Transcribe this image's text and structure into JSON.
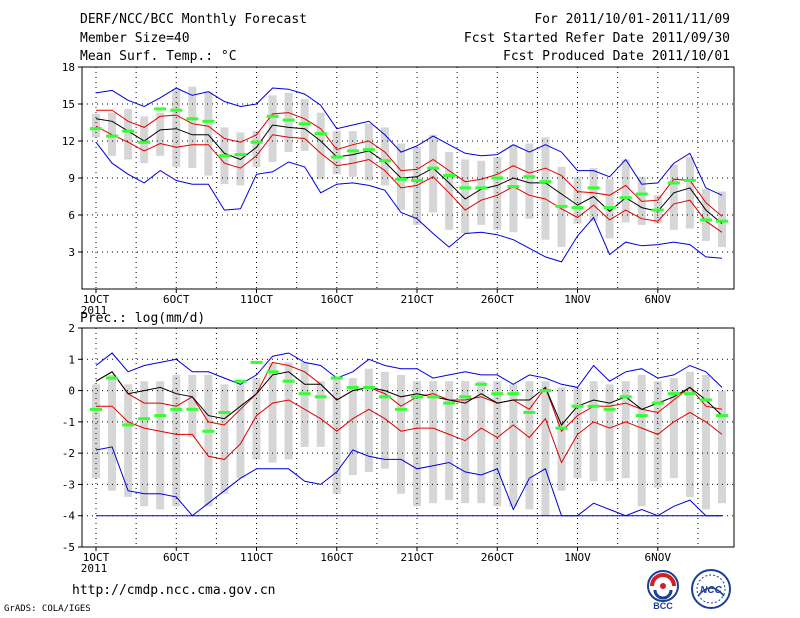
{
  "header": {
    "title": "DERF/NCC/BCC Monthly Forecast",
    "member_size": "Member Size=40",
    "variable": "Mean Surf. Temp.: °C",
    "period": "For 2011/10/01-2011/11/09",
    "fcst_started": "Fcst Started Refer Date 2011/09/30",
    "fcst_produced": "Fcst Produced Date 2011/10/01"
  },
  "footer": {
    "url": "http://cmdp.ncc.cma.gov.cn",
    "credit": "GrADS: COLA/IGES",
    "logo_left_text": "BCC",
    "logo_right_text": "NCC"
  },
  "colors": {
    "box": "#d6d6d6",
    "mean": "#000000",
    "inner": "#e00000",
    "outer": "#0000e0",
    "median": "#33ff33"
  },
  "chart_data": [
    {
      "type": "line",
      "title": "Mean Surf. Temp.: °C",
      "x_ticks": [
        "1OCT",
        "6OCT",
        "11OCT",
        "16OCT",
        "21OCT",
        "26OCT",
        "1NOV",
        "6NOV"
      ],
      "x_year": "2011",
      "y_ticks": [
        "3",
        "6",
        "9",
        "12",
        "15",
        "18"
      ],
      "ylim": [
        0,
        18
      ],
      "days": 40,
      "series": [
        {
          "name": "max",
          "values": [
            15.9,
            16.1,
            15.3,
            14.8,
            15.5,
            16.3,
            15.7,
            16,
            15.2,
            14.8,
            15,
            16.3,
            16.2,
            15.8,
            14.9,
            13,
            13.3,
            13.6,
            12.5,
            11.1,
            11.6,
            12.4,
            11.7,
            11,
            10.8,
            10.9,
            11.7,
            11.1,
            11.7,
            11.1,
            9.6,
            9.6,
            9.1,
            10.5,
            8.5,
            8.6,
            10.2,
            11,
            8.2,
            7.6
          ]
        },
        {
          "name": "upper",
          "values": [
            14.5,
            14.5,
            13.6,
            13.1,
            14,
            14.1,
            13.4,
            13.2,
            12.2,
            11.9,
            12.5,
            14.2,
            14.3,
            13.8,
            13,
            11.3,
            11.7,
            12,
            11.1,
            9.6,
            9.7,
            10.5,
            9.6,
            8.7,
            8.9,
            9.3,
            10,
            9.4,
            9.8,
            9.2,
            7.9,
            7.8,
            7.6,
            8.4,
            7.1,
            7.2,
            8.9,
            8.8,
            7,
            5.9
          ]
        },
        {
          "name": "mean",
          "values": [
            13.8,
            13.6,
            12.8,
            12,
            12.9,
            13,
            12.5,
            12.5,
            11,
            10.5,
            11.5,
            13.3,
            13.1,
            13,
            12,
            10.7,
            10.9,
            11.2,
            10.3,
            9,
            9.1,
            9.8,
            8.6,
            7.3,
            8.1,
            8.4,
            9,
            8.6,
            8.6,
            7.7,
            6.8,
            7.5,
            6.3,
            7.4,
            6.6,
            6.3,
            7.8,
            8.2,
            6.4,
            5.3
          ]
        },
        {
          "name": "lower",
          "values": [
            13.2,
            12.5,
            11.9,
            11.2,
            11.8,
            11.5,
            11.7,
            11.7,
            10.2,
            9.8,
            10.8,
            12.5,
            12.3,
            12.2,
            11,
            10,
            10.2,
            10.5,
            9.6,
            8.2,
            8.4,
            9.1,
            7.8,
            6.4,
            7.2,
            7.6,
            8.3,
            7.6,
            7.3,
            6.5,
            5.8,
            6.8,
            5.6,
            6.4,
            5.7,
            5.5,
            6.9,
            7.2,
            5.5,
            4.6
          ]
        },
        {
          "name": "min",
          "values": [
            11.9,
            10.2,
            9.3,
            8.6,
            9.6,
            8.8,
            8.5,
            8.5,
            6.4,
            6.5,
            9.3,
            9.5,
            10.3,
            9.9,
            7.8,
            8.5,
            8.6,
            8.4,
            8,
            6.2,
            5.7,
            4.5,
            3.4,
            4.5,
            4.6,
            4.4,
            4,
            3.3,
            2.6,
            2.2,
            4.3,
            5.8,
            2.8,
            3.8,
            3.5,
            3.6,
            3.8,
            3.6,
            2.6,
            2.5
          ]
        },
        {
          "name": "median",
          "values": [
            13,
            12.4,
            12.8,
            11.9,
            14.6,
            14.5,
            13.8,
            13.6,
            10.8,
            10.9,
            11.9,
            14,
            13.7,
            13.4,
            12.6,
            10.7,
            11.2,
            11.3,
            10.4,
            8.9,
            8.8,
            9.8,
            9.2,
            8.2,
            8.2,
            9,
            8.3,
            9.1,
            8.7,
            6.7,
            6.6,
            8.2,
            6.6,
            7.4,
            7.7,
            6.4,
            8.6,
            8.8,
            5.6,
            5.5
          ]
        },
        {
          "name": "box_high",
          "values": [
            14.2,
            14.3,
            14.6,
            14,
            14.3,
            16.2,
            16.4,
            16,
            13.1,
            12.7,
            12.8,
            15.7,
            15.9,
            15.4,
            14.3,
            12.8,
            12.8,
            13.4,
            13.1,
            11.8,
            11.5,
            12.5,
            11.1,
            10.5,
            10.4,
            10.7,
            11.7,
            11.8,
            12.3,
            9.9,
            9.1,
            9.8,
            8.9,
            10.5,
            9.1,
            7.6,
            10.1,
            10.7,
            8.1,
            7.9
          ]
        },
        {
          "name": "box_low",
          "values": [
            12.3,
            10.8,
            10.5,
            10.2,
            10.8,
            9.9,
            9.8,
            9.2,
            8.5,
            8.4,
            9.9,
            10.3,
            11.1,
            11.2,
            8.9,
            9.3,
            9.1,
            8.8,
            8.4,
            6.4,
            5.2,
            6.2,
            4.8,
            4.5,
            5.2,
            4.8,
            4.6,
            5.7,
            4,
            3.4,
            5.3,
            5.5,
            4.1,
            5.4,
            5.2,
            5.3,
            4.8,
            4.9,
            3.9,
            3.4
          ]
        }
      ]
    },
    {
      "type": "line",
      "title": "Prec.: log(mm/d)",
      "x_ticks": [
        "1OCT",
        "6OCT",
        "11OCT",
        "16OCT",
        "21OCT",
        "26OCT",
        "1NOV",
        "6NOV"
      ],
      "x_year": "2011",
      "y_ticks": [
        "-5",
        "-4",
        "-3",
        "-2",
        "-1",
        "0",
        "1",
        "2"
      ],
      "ylim": [
        -5,
        2
      ],
      "days": 40,
      "series": [
        {
          "name": "max",
          "values": [
            0.8,
            1.2,
            0.6,
            0.8,
            0.9,
            1,
            0.6,
            0.6,
            0.4,
            0.2,
            0.5,
            1.1,
            1.2,
            0.9,
            0.8,
            0.4,
            0.6,
            1,
            0.8,
            0.7,
            0.7,
            0.4,
            0.5,
            0.6,
            0.5,
            0.5,
            0.2,
            0.5,
            0.4,
            0.2,
            0.1,
            0.8,
            0.3,
            0.6,
            0.7,
            0.4,
            0.5,
            0.8,
            0.6,
            0.1
          ]
        },
        {
          "name": "upper",
          "values": [
            0.3,
            0.6,
            -0.1,
            -0.4,
            -0.4,
            -0.5,
            -0.2,
            -1,
            -1.1,
            -0.6,
            -0.1,
            0.9,
            0.8,
            0.6,
            0.2,
            -0.3,
            0,
            0.1,
            -0.1,
            -0.5,
            -0.2,
            -0.1,
            -0.3,
            -0.3,
            -0.2,
            -0.4,
            -0.3,
            -0.6,
            0.1,
            -1.3,
            -0.8,
            -0.5,
            -0.5,
            -0.4,
            -0.6,
            -0.7,
            -0.3,
            0.1,
            -0.5,
            -0.6
          ]
        },
        {
          "name": "mean",
          "values": [
            0.3,
            0.6,
            -0.1,
            0,
            0.1,
            -0.1,
            -0.2,
            -0.8,
            -0.9,
            -0.5,
            -0.1,
            0.5,
            0.6,
            0.2,
            0.2,
            -0.3,
            0,
            0.1,
            0,
            -0.2,
            -0.1,
            -0.2,
            -0.3,
            -0.4,
            -0.1,
            -0.4,
            -0.3,
            -0.3,
            0.1,
            -1.1,
            -0.5,
            -0.3,
            -0.4,
            -0.2,
            -0.6,
            -0.4,
            -0.2,
            0.1,
            -0.3,
            -0.8
          ]
        },
        {
          "name": "lower",
          "values": [
            -0.5,
            -0.5,
            -1,
            -1.2,
            -1.3,
            -1.4,
            -1.4,
            -2.1,
            -2.2,
            -1.7,
            -0.8,
            -0.4,
            -0.3,
            -0.6,
            -0.9,
            -1.3,
            -0.9,
            -0.6,
            -0.9,
            -1.3,
            -1.2,
            -1.2,
            -1.4,
            -1.6,
            -1.2,
            -1.5,
            -1.1,
            -1.5,
            -0.9,
            -2.3,
            -1.4,
            -1,
            -1.2,
            -1,
            -1.2,
            -1.4,
            -1,
            -0.7,
            -1,
            -1.4
          ]
        },
        {
          "name": "min",
          "values": [
            -1.9,
            -1.8,
            -3.2,
            -3.3,
            -3.3,
            -3.4,
            -4,
            -3.6,
            -3.2,
            -2.8,
            -2.5,
            -2.5,
            -2.5,
            -2.9,
            -3,
            -2.6,
            -1.9,
            -2.1,
            -2.2,
            -2.2,
            -2.5,
            -2.4,
            -2.3,
            -2.6,
            -2.7,
            -2.5,
            -3.8,
            -2.8,
            -2.5,
            -4,
            -4,
            -3.6,
            -3.8,
            -4,
            -3.8,
            -4,
            -3.7,
            -3.5,
            -4,
            -4
          ]
        },
        {
          "name": "min_floor",
          "values": [
            -4,
            -4,
            -4,
            -4,
            -4,
            -4,
            -4,
            -4,
            -4,
            -4,
            -4,
            -4,
            -4,
            -4,
            -4,
            -4,
            -4,
            -4,
            -4,
            -4,
            -4,
            -4,
            -4,
            -4,
            -4,
            -4,
            -4,
            -4,
            -4,
            -4,
            -4,
            -4,
            -4,
            -4,
            -4,
            -4,
            -4,
            -4,
            -4,
            -4
          ]
        },
        {
          "name": "median",
          "values": [
            -0.6,
            0.4,
            -1.1,
            -0.9,
            -0.8,
            -0.6,
            -0.6,
            -1.3,
            -0.7,
            0.3,
            0.9,
            0.6,
            0.3,
            -0.1,
            -0.2,
            0.4,
            0.1,
            0.1,
            -0.2,
            -0.6,
            -0.2,
            -0.2,
            -0.4,
            -0.2,
            0.2,
            -0.1,
            -0.1,
            -0.7,
            0,
            -1.2,
            -0.5,
            -0.5,
            -0.6,
            -0.2,
            -0.8,
            -0.4,
            -0.1,
            -0.1,
            -0.3,
            -0.8
          ]
        },
        {
          "name": "box_high",
          "values": [
            0.2,
            0.5,
            0.2,
            0.3,
            0.3,
            0.5,
            0.5,
            0.5,
            0.2,
            0.2,
            0.4,
            0.9,
            0.9,
            0.9,
            0.3,
            0.4,
            0.4,
            0.7,
            0.6,
            0.5,
            0.3,
            0.3,
            0.3,
            0.3,
            0.3,
            0.3,
            0.2,
            0.3,
            0.3,
            0.1,
            0.1,
            0.3,
            0.2,
            0.3,
            0.5,
            0.3,
            0.4,
            0.6,
            0.5,
            0
          ]
        },
        {
          "name": "box_low",
          "values": [
            -2.8,
            -3.2,
            -3.4,
            -3.7,
            -3.8,
            -3.7,
            -1.5,
            -3.7,
            -3.3,
            -2.8,
            -2.2,
            -2.3,
            -2.2,
            -1.8,
            -1.8,
            -3.3,
            -2.7,
            -2.6,
            -2.5,
            -3.3,
            -3.7,
            -3.6,
            -3.5,
            -3.6,
            -3.6,
            -3.7,
            -3.7,
            -3.8,
            -4,
            -3.2,
            -2.8,
            -2.9,
            -2.9,
            -2.8,
            -3.7,
            -3.1,
            -2.8,
            -3.4,
            -3.8,
            -3.6
          ]
        }
      ]
    }
  ]
}
